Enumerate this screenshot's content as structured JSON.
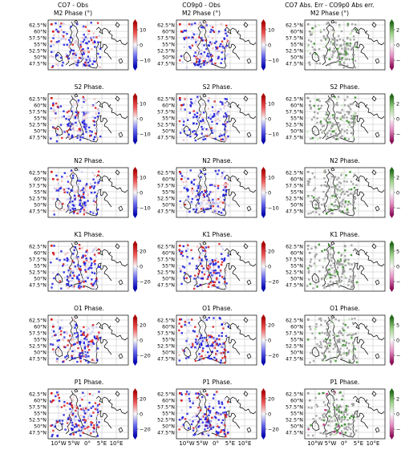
{
  "columns": [
    {
      "title_line1": "CO7 - Obs",
      "title_line2": "M2 Phase (°)",
      "scheme": "rwb"
    },
    {
      "title_line1": "CO9p0 - Obs",
      "title_line2": "M2 Phase (°)",
      "scheme": "rwb"
    },
    {
      "title_line1": "CO7 Abs. Err - CO9p0 Abs err.",
      "title_line2": "M2 Phase (°)",
      "scheme": "pg"
    }
  ],
  "rows": [
    {
      "constituent": "M2",
      "label": "",
      "cbar_rwb": [
        "10",
        "0",
        "−10"
      ],
      "cbar_pg": [
        "2",
        "0",
        "−2"
      ]
    },
    {
      "constituent": "S2",
      "label": "S2 Phase.",
      "cbar_rwb": [
        "10",
        "0",
        "−10"
      ],
      "cbar_pg": [
        "2",
        "0",
        "−2"
      ]
    },
    {
      "constituent": "N2",
      "label": "N2 Phase.",
      "cbar_rwb": [
        "10",
        "0",
        "−10"
      ],
      "cbar_pg": [
        "2",
        "0",
        "−2"
      ]
    },
    {
      "constituent": "K1",
      "label": "K1 Phase.",
      "cbar_rwb": [
        "20",
        "0",
        "−20"
      ],
      "cbar_pg": [
        "5",
        "0",
        "−5"
      ]
    },
    {
      "constituent": "O1",
      "label": "O1 Phase.",
      "cbar_rwb": [
        "20",
        "0",
        "−20"
      ],
      "cbar_pg": [
        "5",
        "0",
        "−5"
      ]
    },
    {
      "constituent": "P1",
      "label": "P1 Phase.",
      "cbar_rwb": [
        "20",
        "0",
        "−20"
      ],
      "cbar_pg": [
        "2",
        "0",
        "−2"
      ]
    }
  ],
  "lat_ticks": [
    "62.5°N",
    "60°N",
    "57.5°N",
    "55°N",
    "52.5°N",
    "50°N",
    "47.5°N"
  ],
  "lon_ticks": [
    "10°W",
    "5°W",
    "0°",
    "5°E",
    "10°E"
  ],
  "colors": {
    "red": "#d7191c",
    "blue": "#1a1adb",
    "white": "#f4f4f4",
    "green": "#2d8a1e",
    "magenta": "#c2187a",
    "grey": "#9a9a9a",
    "coast": "#000000",
    "grid": "#b0b0b0"
  }
}
